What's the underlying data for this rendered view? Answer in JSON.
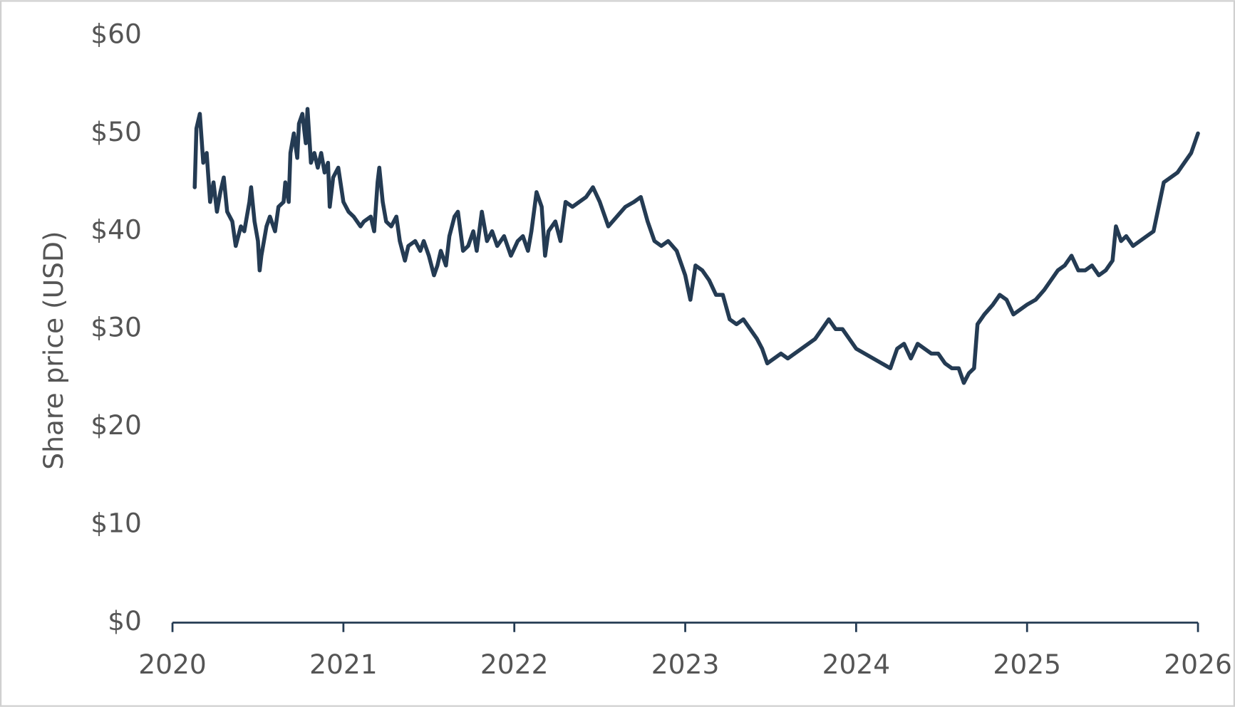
{
  "chart_data": {
    "type": "line",
    "y_label": "Share price (USD)",
    "color": "#243b53",
    "xlim": [
      2020,
      2026
    ],
    "xticks": [
      2020,
      2021,
      2022,
      2023,
      2024,
      2025,
      2026
    ],
    "ylim": [
      0,
      60
    ],
    "yticks": [
      {
        "value": 0,
        "label": "$0"
      },
      {
        "value": 10,
        "label": "$10"
      },
      {
        "value": 20,
        "label": "$20"
      },
      {
        "value": 30,
        "label": "$30"
      },
      {
        "value": 40,
        "label": "$40"
      },
      {
        "value": 50,
        "label": "$50"
      },
      {
        "value": 60,
        "label": "$60"
      }
    ],
    "grid": false,
    "x": [
      2020.13,
      2020.14,
      2020.16,
      2020.18,
      2020.2,
      2020.22,
      2020.24,
      2020.26,
      2020.28,
      2020.3,
      2020.32,
      2020.35,
      2020.37,
      2020.4,
      2020.42,
      2020.45,
      2020.46,
      2020.48,
      2020.5,
      2020.51,
      2020.52,
      2020.55,
      2020.57,
      2020.6,
      2020.62,
      2020.65,
      2020.66,
      2020.68,
      2020.69,
      2020.71,
      2020.73,
      2020.74,
      2020.76,
      2020.78,
      2020.79,
      2020.81,
      2020.83,
      2020.85,
      2020.87,
      2020.89,
      2020.91,
      2020.92,
      2020.94,
      2020.97,
      2021.0,
      2021.03,
      2021.06,
      2021.1,
      2021.12,
      2021.16,
      2021.18,
      2021.2,
      2021.21,
      2021.23,
      2021.25,
      2021.28,
      2021.31,
      2021.33,
      2021.36,
      2021.38,
      2021.42,
      2021.45,
      2021.47,
      2021.5,
      2021.53,
      2021.55,
      2021.57,
      2021.6,
      2021.62,
      2021.65,
      2021.67,
      2021.7,
      2021.73,
      2021.76,
      2021.78,
      2021.81,
      2021.84,
      2021.87,
      2021.9,
      2021.94,
      2021.98,
      2022.02,
      2022.05,
      2022.08,
      2022.1,
      2022.13,
      2022.16,
      2022.18,
      2022.2,
      2022.24,
      2022.27,
      2022.3,
      2022.34,
      2022.38,
      2022.42,
      2022.46,
      2022.5,
      2022.55,
      2022.6,
      2022.65,
      2022.7,
      2022.74,
      2022.78,
      2022.82,
      2022.86,
      2022.9,
      2022.95,
      2023.0,
      2023.03,
      2023.06,
      2023.1,
      2023.14,
      2023.18,
      2023.22,
      2023.26,
      2023.3,
      2023.34,
      2023.38,
      2023.42,
      2023.45,
      2023.48,
      2023.52,
      2023.56,
      2023.6,
      2023.64,
      2023.68,
      2023.72,
      2023.76,
      2023.8,
      2023.84,
      2023.88,
      2023.92,
      2023.96,
      2024.0,
      2024.05,
      2024.1,
      2024.15,
      2024.2,
      2024.24,
      2024.28,
      2024.32,
      2024.36,
      2024.4,
      2024.44,
      2024.48,
      2024.52,
      2024.56,
      2024.6,
      2024.63,
      2024.66,
      2024.69,
      2024.71,
      2024.75,
      2024.8,
      2024.84,
      2024.88,
      2024.92,
      2024.96,
      2025.0,
      2025.05,
      2025.1,
      2025.14,
      2025.18,
      2025.22,
      2025.26,
      2025.3,
      2025.34,
      2025.38,
      2025.42,
      2025.46,
      2025.5,
      2025.52,
      2025.55,
      2025.58,
      2025.62,
      2025.66,
      2025.7,
      2025.74,
      2025.77,
      2025.8,
      2025.84,
      2025.88,
      2025.92,
      2025.96,
      2026.0
    ],
    "values": [
      44.5,
      50.5,
      52,
      47,
      48,
      43,
      45,
      42,
      44,
      45.5,
      42,
      41,
      38.5,
      40.5,
      40,
      43,
      44.5,
      41,
      39,
      36,
      37.5,
      40.5,
      41.5,
      40,
      42.5,
      43,
      45,
      43,
      48,
      50,
      47.5,
      51,
      52,
      49,
      52.5,
      47,
      48,
      46.5,
      48,
      46,
      47,
      42.5,
      45.5,
      46.5,
      43,
      42,
      41.5,
      40.5,
      41,
      41.5,
      40,
      45,
      46.5,
      43,
      41,
      40.5,
      41.5,
      39,
      37,
      38.5,
      39,
      38,
      39,
      37.5,
      35.5,
      36.5,
      38,
      36.5,
      39.5,
      41.5,
      42,
      38,
      38.5,
      40,
      38,
      42,
      39,
      40,
      38.5,
      39.5,
      37.5,
      39,
      39.5,
      38,
      40,
      44,
      42.5,
      37.5,
      40,
      41,
      39,
      43,
      42.5,
      43,
      43.5,
      44.5,
      43,
      40.5,
      41.5,
      42.5,
      43,
      43.5,
      41,
      39,
      38.5,
      39,
      38,
      35.5,
      33,
      36.5,
      36,
      35,
      33.5,
      33.5,
      31,
      30.5,
      31,
      30,
      29,
      28,
      26.5,
      27,
      27.5,
      27,
      27.5,
      28,
      28.5,
      29,
      30,
      31,
      30,
      30,
      29,
      28,
      27.5,
      27,
      26.5,
      26,
      28,
      28.5,
      27,
      28.5,
      28,
      27.5,
      27.5,
      26.5,
      26,
      26,
      24.5,
      25.5,
      26,
      30.5,
      31.5,
      32.5,
      33.5,
      33,
      31.5,
      32,
      32.5,
      33,
      34,
      35,
      36,
      36.5,
      37.5,
      36,
      36,
      36.5,
      35.5,
      36,
      37,
      40.5,
      39,
      39.5,
      38.5,
      39,
      39.5,
      40,
      42.5,
      45,
      45.5,
      46,
      47,
      48,
      50
    ]
  }
}
